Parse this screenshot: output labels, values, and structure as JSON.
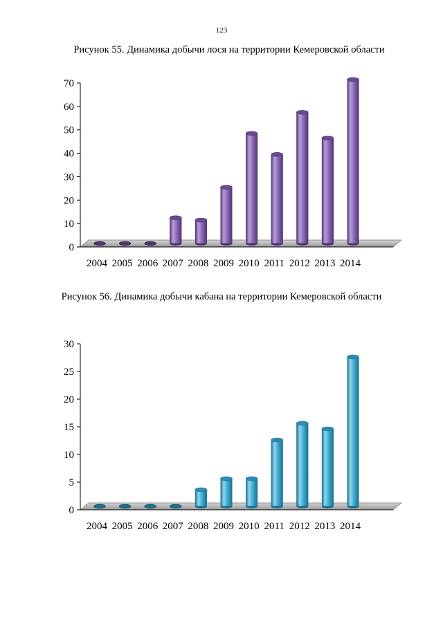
{
  "page": {
    "number": "123"
  },
  "figures": [
    {
      "caption": "Рисунок 55. Динамика добычи лося на территории Кемеровской области"
    },
    {
      "caption": "Рисунок 56. Динамика добычи кабана на территории Кемеровской области"
    }
  ],
  "chart_data": [
    {
      "type": "bar",
      "title": "Рисунок 55. Динамика добычи лося на территории Кемеровской области",
      "categories": [
        "2004",
        "2005",
        "2006",
        "2007",
        "2008",
        "2009",
        "2010",
        "2011",
        "2012",
        "2013",
        "2014"
      ],
      "values": [
        0,
        0,
        0,
        11,
        10,
        24,
        47,
        38,
        56,
        45,
        70
      ],
      "ylim": [
        0,
        70
      ],
      "yticks": [
        0,
        10,
        20,
        30,
        40,
        50,
        60,
        70
      ],
      "xlabel": "",
      "ylabel": "",
      "grid": false,
      "colors": {
        "bar_light": "#b79fd6",
        "bar_mid": "#8a67b8",
        "bar_dark": "#4f3470",
        "top": "#6a4a92"
      }
    },
    {
      "type": "bar",
      "title": "Рисунок 56. Динамика добычи кабана на территории Кемеровской области",
      "categories": [
        "2004",
        "2005",
        "2006",
        "2007",
        "2008",
        "2009",
        "2010",
        "2011",
        "2012",
        "2013",
        "2014"
      ],
      "values": [
        0,
        0,
        0,
        0,
        3,
        5,
        5,
        12,
        15,
        14,
        27
      ],
      "ylim": [
        0,
        30
      ],
      "yticks": [
        0,
        5,
        10,
        15,
        20,
        25,
        30
      ],
      "xlabel": "",
      "ylabel": "",
      "grid": false,
      "colors": {
        "bar_light": "#8fd6ec",
        "bar_mid": "#3fa9cf",
        "bar_dark": "#1b6f8f",
        "top": "#2c8db2"
      }
    }
  ]
}
